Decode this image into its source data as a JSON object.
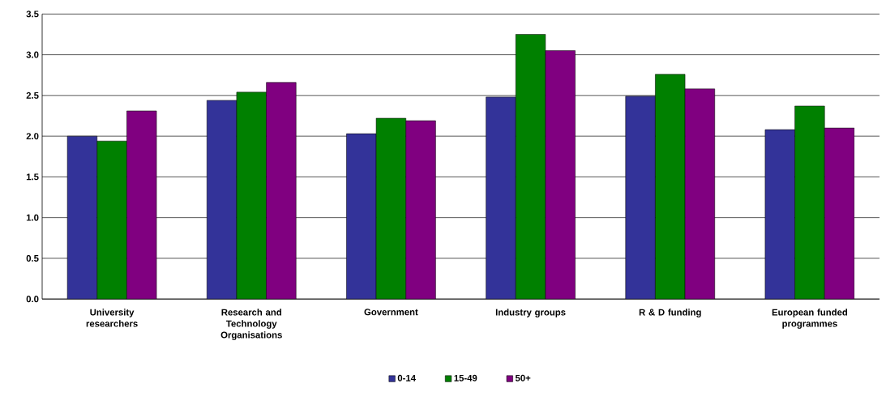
{
  "chart_data": {
    "type": "bar",
    "categories": [
      "University researchers",
      "Research and Technology Organisations",
      "Government",
      "Industry groups",
      "R & D funding",
      "European funded programmes"
    ],
    "series": [
      {
        "name": "0-14",
        "color": "#333399",
        "values": [
          2.0,
          2.44,
          2.03,
          2.48,
          2.49,
          2.08
        ]
      },
      {
        "name": "15-49",
        "color": "#008000",
        "values": [
          1.94,
          2.54,
          2.22,
          3.25,
          2.76,
          2.37
        ]
      },
      {
        "name": "50+",
        "color": "#800080",
        "values": [
          2.31,
          2.66,
          2.19,
          3.05,
          2.58,
          2.1
        ]
      }
    ],
    "ylim": [
      0,
      3.5
    ],
    "yticks": [
      {
        "value": 0,
        "label": "0.0"
      },
      0.5,
      {
        "value": 1,
        "label": "1.0"
      },
      1.5,
      {
        "value": 2,
        "label": "2.0"
      },
      2.5,
      {
        "value": 3,
        "label": "3.0"
      },
      3.5
    ],
    "grid": "y",
    "legend": "bottom"
  }
}
